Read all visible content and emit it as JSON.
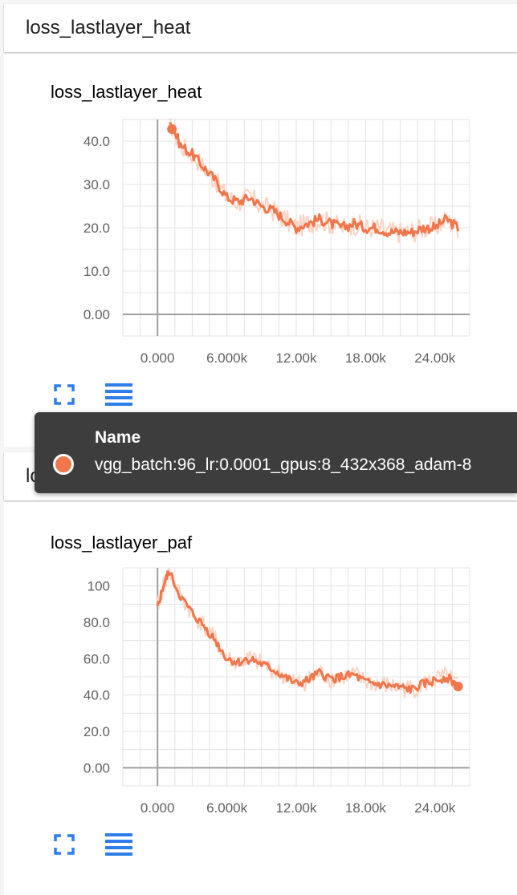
{
  "cards": [
    {
      "header": "loss_lastlayer_heat",
      "title": "loss_lastlayer_heat"
    },
    {
      "header": "loss_lastlayer_paf",
      "title": "loss_lastlayer_paf"
    }
  ],
  "colors": {
    "series": "#f0764b",
    "series_raw": "#fbd3c3",
    "tool_icon": "#2e7de8",
    "tooltip_bg": "#3d3d3d"
  },
  "icons": [
    "fullscreen-icon",
    "data-list-icon"
  ],
  "tooltip": {
    "header": "Name",
    "run": "vgg_batch:96_lr:0.0001_gpus:8_432x368_adam-8"
  },
  "chart_data": [
    {
      "type": "line",
      "title": "loss_lastlayer_heat",
      "xlim": [
        -3000,
        27000
      ],
      "ylim": [
        -5,
        45
      ],
      "x_ticks": [
        0,
        6000,
        12000,
        18000,
        24000
      ],
      "x_tick_labels": [
        "0.000",
        "6.000k",
        "12.00k",
        "18.00k",
        "24.00k"
      ],
      "y_ticks": [
        0,
        10,
        20,
        30,
        40
      ],
      "y_tick_labels": [
        "0.00",
        "10.0",
        "20.0",
        "30.0",
        "40.0"
      ],
      "grid": true,
      "series": [
        {
          "name": "vgg_batch:96_lr:0.0001_gpus:8_432x368_adam-8",
          "x": [
            1000,
            2000,
            3000,
            4000,
            5000,
            6000,
            7000,
            8000,
            9000,
            10000,
            11000,
            12000,
            13000,
            14000,
            15000,
            16000,
            17000,
            18000,
            19000,
            20000,
            21000,
            22000,
            23000,
            24000,
            25000,
            26000
          ],
          "y": [
            45,
            39,
            37,
            34,
            31,
            27,
            26,
            27,
            25,
            24,
            22,
            20,
            21,
            22,
            21,
            20,
            21,
            20,
            20,
            19,
            19,
            19,
            20,
            20,
            22,
            20
          ]
        }
      ]
    },
    {
      "type": "line",
      "title": "loss_lastlayer_paf",
      "xlim": [
        -3000,
        27000
      ],
      "ylim": [
        -10,
        110
      ],
      "x_ticks": [
        0,
        6000,
        12000,
        18000,
        24000
      ],
      "x_tick_labels": [
        "0.000",
        "6.000k",
        "12.00k",
        "18.00k",
        "24.00k"
      ],
      "y_ticks": [
        0,
        20,
        40,
        60,
        80,
        100
      ],
      "y_tick_labels": [
        "0.00",
        "20.0",
        "40.0",
        "60.0",
        "80.0",
        "100"
      ],
      "grid": true,
      "series": [
        {
          "name": "vgg_batch:96_lr:0.0001_gpus:8_432x368_adam-8",
          "x": [
            0,
            500,
            1000,
            2000,
            3000,
            4000,
            5000,
            6000,
            7000,
            8000,
            9000,
            10000,
            11000,
            12000,
            13000,
            14000,
            15000,
            16000,
            17000,
            18000,
            19000,
            20000,
            21000,
            22000,
            23000,
            24000,
            25000,
            26000
          ],
          "y": [
            88,
            100,
            108,
            94,
            85,
            78,
            70,
            60,
            58,
            60,
            57,
            54,
            50,
            46,
            48,
            52,
            49,
            50,
            51,
            47,
            46,
            45,
            44,
            43,
            46,
            48,
            50,
            45
          ]
        }
      ]
    }
  ]
}
